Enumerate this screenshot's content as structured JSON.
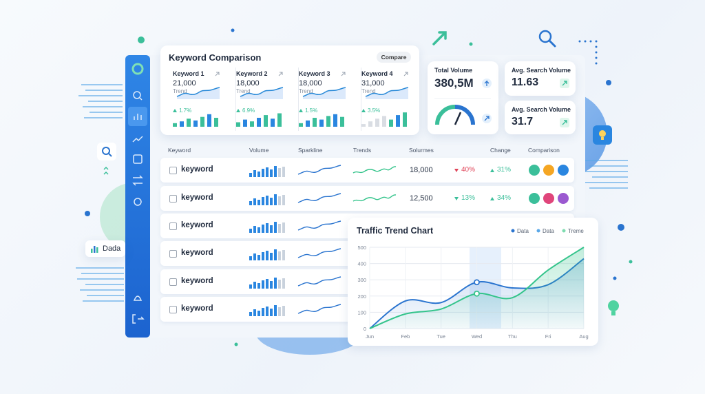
{
  "floating_tag": "Dada",
  "comparison": {
    "title": "Keyword Comparison",
    "button": "Compare",
    "keywords": [
      {
        "name": "Keyword 1",
        "value": "21,000",
        "trend_label": "Trend",
        "change": "1.7%"
      },
      {
        "name": "Keyword 2",
        "value": "18,000",
        "trend_label": "Trend",
        "change": "6.9%"
      },
      {
        "name": "Keyword 3",
        "value": "18,000",
        "trend_label": "Trend",
        "change": "1.5%"
      },
      {
        "name": "Keyword 4",
        "value": "31,000",
        "trend_label": "Trend",
        "change": "3.5%"
      }
    ]
  },
  "stats": [
    {
      "label": "Total Volume",
      "value": "380,5M"
    },
    {
      "label": "Avg. Search Volume",
      "value": "11.63"
    },
    {
      "label": "Avg. Search Volume",
      "value": "31.7"
    }
  ],
  "table": {
    "headers": [
      "Keyword",
      "Volume",
      "Sparkline",
      "Trends",
      "Solurmes",
      "Change",
      "Comparison"
    ],
    "rows": [
      {
        "keyword": "keyword",
        "solurmes": "18,000",
        "change_down": "40%",
        "change_up": "31%"
      },
      {
        "keyword": "keyword",
        "solurmes": "12,500",
        "change_down": "13%",
        "change_up": "34%"
      },
      {
        "keyword": "keyword"
      },
      {
        "keyword": "keyword"
      },
      {
        "keyword": "keyword"
      },
      {
        "keyword": "keyword"
      }
    ]
  },
  "chart_data": {
    "type": "line",
    "title": "Traffic Trend Chart",
    "legend": [
      {
        "name": "Data",
        "color": "#2a74cf"
      },
      {
        "name": "Data",
        "color": "#5aa8e8"
      },
      {
        "name": "Treme",
        "color": "#7fdcb0"
      }
    ],
    "categories": [
      "Jun",
      "Feb",
      "Tue",
      "Wed",
      "Thu",
      "Fri",
      "Aug"
    ],
    "series": [
      {
        "color": "#2a74cf",
        "values": [
          0,
          170,
          160,
          285,
          250,
          270,
          430
        ]
      },
      {
        "color": "#34c48b",
        "values": [
          0,
          90,
          120,
          215,
          190,
          360,
          500
        ]
      }
    ],
    "ylim": [
      0,
      500
    ],
    "yticks": [
      0,
      100,
      200,
      300,
      400,
      500
    ],
    "grid": true
  }
}
